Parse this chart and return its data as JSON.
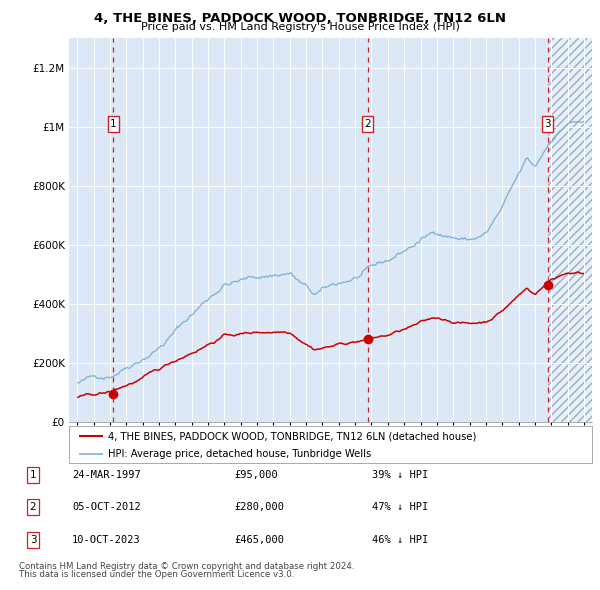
{
  "title": "4, THE BINES, PADDOCK WOOD, TONBRIDGE, TN12 6LN",
  "subtitle": "Price paid vs. HM Land Registry's House Price Index (HPI)",
  "hpi_label": "HPI: Average price, detached house, Tunbridge Wells",
  "property_label": "4, THE BINES, PADDOCK WOOD, TONBRIDGE, TN12 6LN (detached house)",
  "footer1": "Contains HM Land Registry data © Crown copyright and database right 2024.",
  "footer2": "This data is licensed under the Open Government Licence v3.0.",
  "transactions": [
    {
      "num": 1,
      "date": "24-MAR-1997",
      "price": 95000,
      "pct": "39% ↓ HPI",
      "year": 1997.22
    },
    {
      "num": 2,
      "date": "05-OCT-2012",
      "price": 280000,
      "pct": "47% ↓ HPI",
      "year": 2012.76
    },
    {
      "num": 3,
      "date": "10-OCT-2023",
      "price": 465000,
      "pct": "46% ↓ HPI",
      "year": 2023.77
    }
  ],
  "hpi_color": "#7bafd4",
  "price_color": "#cc0000",
  "dashed_line_color": "#cc2222",
  "background_color": "#dce8f5",
  "ylim": [
    0,
    1300000
  ],
  "xlim_start": 1994.5,
  "xlim_end": 2026.5,
  "yticks": [
    0,
    200000,
    400000,
    600000,
    800000,
    1000000,
    1200000
  ],
  "ylabels": [
    "£0",
    "£200K",
    "£400K",
    "£600K",
    "£800K",
    "£1M",
    "£1.2M"
  ]
}
